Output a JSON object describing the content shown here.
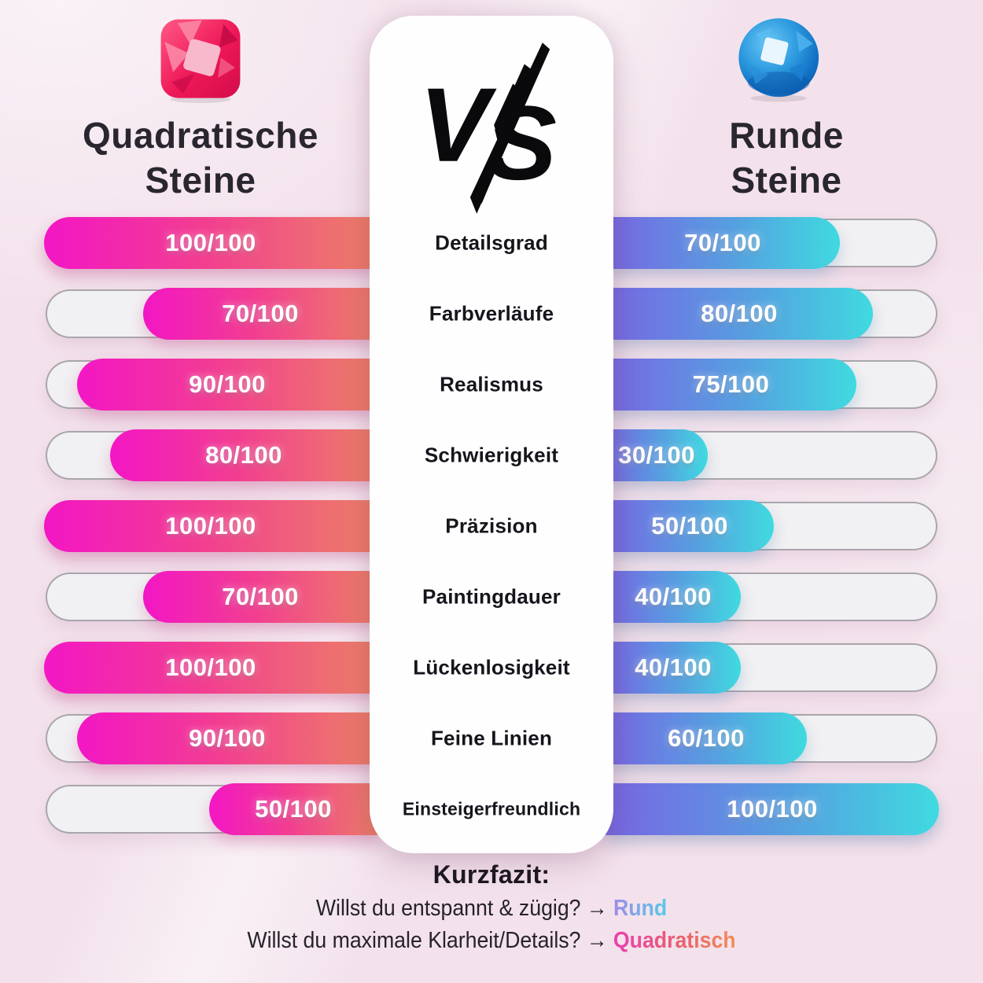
{
  "left_column": {
    "icon": "square-gem-icon",
    "title_line1": "Quadratische",
    "title_line2": "Steine"
  },
  "right_column": {
    "icon": "round-gem-icon",
    "title_line1": "Runde",
    "title_line2": "Steine"
  },
  "versus": {
    "letter_v": "V",
    "letter_s": "S"
  },
  "rows": [
    {
      "label": "Detailsgrad",
      "left_score": "100/100",
      "left_pct": 100,
      "right_score": "70/100",
      "right_pct": 70
    },
    {
      "label": "Farbverläufe",
      "left_score": "70/100",
      "left_pct": 70,
      "right_score": "80/100",
      "right_pct": 80
    },
    {
      "label": "Realismus",
      "left_score": "90/100",
      "left_pct": 90,
      "right_score": "75/100",
      "right_pct": 75
    },
    {
      "label": "Schwierigkeit",
      "left_score": "80/100",
      "left_pct": 80,
      "right_score": "30/100",
      "right_pct": 30
    },
    {
      "label": "Präzision",
      "left_score": "100/100",
      "left_pct": 100,
      "right_score": "50/100",
      "right_pct": 50
    },
    {
      "label": "Paintingdauer",
      "left_score": "70/100",
      "left_pct": 70,
      "right_score": "40/100",
      "right_pct": 40
    },
    {
      "label": "Lückenlosigkeit",
      "left_score": "100/100",
      "left_pct": 100,
      "right_score": "40/100",
      "right_pct": 40
    },
    {
      "label": "Feine Linien",
      "left_score": "90/100",
      "left_pct": 90,
      "right_score": "60/100",
      "right_pct": 60
    },
    {
      "label": "Einsteigerfreundlich",
      "left_score": "50/100",
      "left_pct": 50,
      "right_score": "100/100",
      "right_pct": 100
    }
  ],
  "footer": {
    "heading": "Kurzfazit:",
    "line1_text": "Willst du entspannt & zügig? →",
    "line1_highlight": "Rund",
    "line2_text": "Willst du maximale Klarheit/Details? →",
    "line2_highlight": "Quadratisch"
  },
  "colors": {
    "background": "#f3e2ec",
    "panel": "#fefeff",
    "track": "#f1f0f2",
    "track_border": "#a9a6ab",
    "left_fill_start": "#f316c5",
    "left_fill_end": "#ed8066",
    "right_fill_start": "#7867e4",
    "right_fill_end": "#40dae0",
    "title_text": "#29262f",
    "highlight_round_start": "#9d8be8",
    "highlight_round_end": "#57cbe8",
    "highlight_square_start": "#ea3fb0",
    "highlight_square_end": "#ef8e59"
  },
  "chart_data": {
    "type": "bar",
    "title": "Quadratische Steine VS Runde Steine",
    "categories": [
      "Detailsgrad",
      "Farbverläufe",
      "Realismus",
      "Schwierigkeit",
      "Präzision",
      "Paintingdauer",
      "Lückenlosigkeit",
      "Feine Linien",
      "Einsteigerfreundlich"
    ],
    "series": [
      {
        "name": "Quadratische Steine",
        "values": [
          100,
          70,
          90,
          80,
          100,
          70,
          100,
          90,
          50
        ]
      },
      {
        "name": "Runde Steine",
        "values": [
          70,
          80,
          75,
          30,
          50,
          40,
          40,
          60,
          100
        ]
      }
    ],
    "value_format": "n/100",
    "ylim": [
      0,
      100
    ],
    "layout": "mirrored horizontal bars, categories centered between the two bar columns"
  }
}
